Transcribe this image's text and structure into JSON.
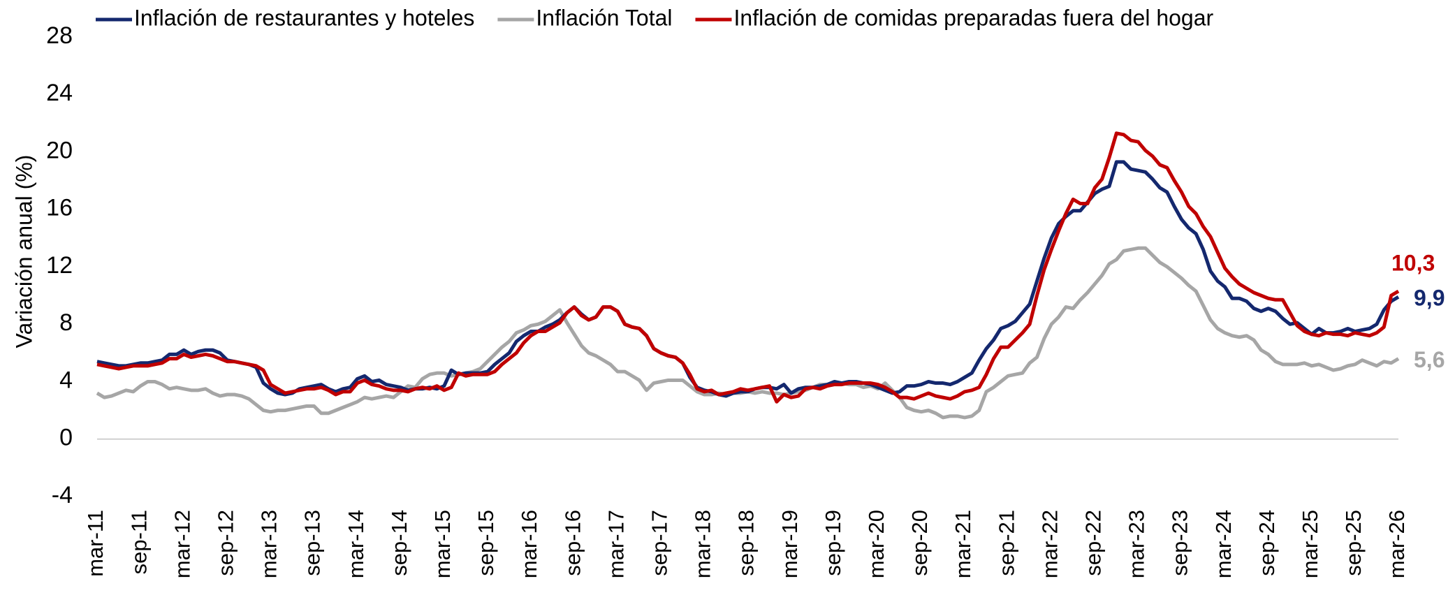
{
  "chart_data": {
    "type": "line",
    "y_label": "Variación anual (%)",
    "categories": [
      "mar-11",
      null,
      null,
      null,
      null,
      null,
      "sep-11",
      null,
      null,
      null,
      null,
      null,
      "mar-12",
      null,
      null,
      null,
      null,
      null,
      "sep-12",
      null,
      null,
      null,
      null,
      null,
      "mar-13",
      null,
      null,
      null,
      null,
      null,
      "sep-13",
      null,
      null,
      null,
      null,
      null,
      "mar-14",
      null,
      null,
      null,
      null,
      null,
      "sep-14",
      null,
      null,
      null,
      null,
      null,
      "mar-15",
      null,
      null,
      null,
      null,
      null,
      "sep-15",
      null,
      null,
      null,
      null,
      null,
      "mar-16",
      null,
      null,
      null,
      null,
      null,
      "sep-16",
      null,
      null,
      null,
      null,
      null,
      "mar-17",
      null,
      null,
      null,
      null,
      null,
      "sep-17",
      null,
      null,
      null,
      null,
      null,
      "mar-18",
      null,
      null,
      null,
      null,
      null,
      "sep-18",
      null,
      null,
      null,
      null,
      null,
      "mar-19",
      null,
      null,
      null,
      null,
      null,
      "sep-19",
      null,
      null,
      null,
      null,
      null,
      "mar-20",
      null,
      null,
      null,
      null,
      null,
      "sep-20",
      null,
      null,
      null,
      null,
      null,
      "mar-21",
      null,
      null,
      null,
      null,
      null,
      "sep-21",
      null,
      null,
      null,
      null,
      null,
      "mar-22",
      null,
      null,
      null,
      null,
      null,
      "sep-22",
      null,
      null,
      null,
      null,
      null,
      "mar-23",
      null,
      null,
      null,
      null,
      null,
      "sep-23",
      null,
      null,
      null,
      null,
      null,
      "mar-24",
      null,
      null,
      null,
      null,
      null,
      "sep-24",
      null,
      null,
      null,
      null,
      null,
      "mar-25",
      null,
      null,
      null,
      null,
      null,
      "sep-25",
      null,
      null,
      null,
      null,
      null,
      "mar-26"
    ],
    "series": [
      {
        "name": "Inflación de restaurantes y hoteles",
        "color": "#14286e",
        "values": [
          5.4,
          5.3,
          5.2,
          5.1,
          5.1,
          5.2,
          5.3,
          5.3,
          5.4,
          5.5,
          5.9,
          5.9,
          6.2,
          5.9,
          6.1,
          6.2,
          6.2,
          6.0,
          5.5,
          5.4,
          5.3,
          5.2,
          5.0,
          3.9,
          3.5,
          3.2,
          3.1,
          3.2,
          3.5,
          3.6,
          3.7,
          3.8,
          3.5,
          3.3,
          3.5,
          3.6,
          4.2,
          4.4,
          4.0,
          4.1,
          3.8,
          3.7,
          3.6,
          3.4,
          3.5,
          3.5,
          3.6,
          3.5,
          3.7,
          4.8,
          4.5,
          4.6,
          4.6,
          4.6,
          4.7,
          5.2,
          5.6,
          6.0,
          6.8,
          7.2,
          7.5,
          7.5,
          7.8,
          8.0,
          8.3,
          8.8,
          9.2,
          8.7,
          8.3,
          8.5,
          9.2,
          9.2,
          8.9,
          8.0,
          7.8,
          7.7,
          7.2,
          6.3,
          6.0,
          5.8,
          5.7,
          5.3,
          4.3,
          3.6,
          3.4,
          3.3,
          3.1,
          3.0,
          3.2,
          3.3,
          3.3,
          3.5,
          3.6,
          3.6,
          3.5,
          3.8,
          3.2,
          3.5,
          3.6,
          3.6,
          3.7,
          3.8,
          4.0,
          3.9,
          4.0,
          4.0,
          3.9,
          3.8,
          3.6,
          3.4,
          3.2,
          3.3,
          3.7,
          3.7,
          3.8,
          4.0,
          3.9,
          3.9,
          3.8,
          4.0,
          4.3,
          4.6,
          5.5,
          6.3,
          6.9,
          7.7,
          7.9,
          8.2,
          8.8,
          9.4,
          11.0,
          12.6,
          14.0,
          15.0,
          15.5,
          15.9,
          15.9,
          16.5,
          17.1,
          17.4,
          17.6,
          19.3,
          19.3,
          18.8,
          18.7,
          18.6,
          18.1,
          17.5,
          17.2,
          16.2,
          15.3,
          14.7,
          14.3,
          13.2,
          11.7,
          11.0,
          10.6,
          9.8,
          9.8,
          9.6,
          9.1,
          8.9,
          9.1,
          8.9,
          8.4,
          8.0,
          8.1,
          7.7,
          7.3,
          7.7,
          7.4,
          7.4,
          7.5,
          7.7,
          7.5,
          7.6,
          7.7,
          8.0,
          9.0,
          9.6,
          9.9
        ],
        "value_labels": {
          "180": "9,9"
        }
      },
      {
        "name": "Inflación Total",
        "color": "#a6a6a6",
        "values": [
          3.2,
          2.9,
          3.0,
          3.2,
          3.4,
          3.3,
          3.7,
          4.0,
          4.0,
          3.8,
          3.5,
          3.6,
          3.5,
          3.4,
          3.4,
          3.5,
          3.2,
          3.0,
          3.1,
          3.1,
          3.0,
          2.8,
          2.4,
          2.0,
          1.9,
          2.0,
          2.0,
          2.1,
          2.2,
          2.3,
          2.3,
          1.8,
          1.8,
          2.0,
          2.2,
          2.4,
          2.6,
          2.9,
          2.8,
          2.9,
          3.0,
          2.9,
          3.3,
          3.7,
          3.6,
          4.2,
          4.5,
          4.6,
          4.6,
          4.4,
          4.5,
          4.6,
          4.7,
          4.9,
          5.4,
          5.9,
          6.4,
          6.8,
          7.4,
          7.6,
          7.9,
          8.0,
          8.2,
          8.6,
          9.0,
          8.1,
          7.3,
          6.5,
          6.0,
          5.8,
          5.5,
          5.2,
          4.7,
          4.7,
          4.4,
          4.1,
          3.4,
          3.9,
          4.0,
          4.1,
          4.1,
          4.1,
          3.7,
          3.3,
          3.1,
          3.1,
          3.2,
          3.1,
          3.2,
          3.2,
          3.3,
          3.2,
          3.3,
          3.2,
          3.2,
          3.1,
          3.2,
          3.3,
          3.4,
          3.6,
          3.8,
          3.8,
          3.9,
          3.9,
          3.8,
          3.8,
          3.6,
          3.7,
          3.5,
          3.9,
          3.4,
          2.9,
          2.2,
          2.0,
          1.9,
          2.0,
          1.8,
          1.5,
          1.6,
          1.6,
          1.5,
          1.6,
          2.0,
          3.3,
          3.6,
          4.0,
          4.4,
          4.5,
          4.6,
          5.3,
          5.7,
          7.0,
          8.0,
          8.5,
          9.2,
          9.1,
          9.7,
          10.2,
          10.8,
          11.4,
          12.2,
          12.5,
          13.1,
          13.2,
          13.3,
          13.3,
          12.8,
          12.3,
          12.0,
          11.6,
          11.2,
          10.7,
          10.3,
          9.3,
          8.3,
          7.7,
          7.4,
          7.2,
          7.1,
          7.2,
          6.9,
          6.2,
          5.9,
          5.4,
          5.2,
          5.2,
          5.2,
          5.3,
          5.1,
          5.2,
          5.0,
          4.8,
          4.9,
          5.1,
          5.2,
          5.5,
          5.3,
          5.1,
          5.4,
          5.3,
          5.6
        ],
        "value_labels": {
          "180": "5,6"
        }
      },
      {
        "name": "Inflación de comidas preparadas fuera del hogar",
        "color": "#c00000",
        "values": [
          5.2,
          5.1,
          5.0,
          4.9,
          5.0,
          5.1,
          5.1,
          5.1,
          5.2,
          5.3,
          5.6,
          5.6,
          5.9,
          5.7,
          5.8,
          5.9,
          5.8,
          5.6,
          5.4,
          5.4,
          5.3,
          5.2,
          5.1,
          4.8,
          3.8,
          3.5,
          3.2,
          3.3,
          3.4,
          3.5,
          3.5,
          3.6,
          3.4,
          3.1,
          3.3,
          3.3,
          3.9,
          4.1,
          3.8,
          3.7,
          3.5,
          3.4,
          3.4,
          3.3,
          3.5,
          3.6,
          3.5,
          3.7,
          3.4,
          3.6,
          4.6,
          4.4,
          4.5,
          4.5,
          4.5,
          4.7,
          5.2,
          5.6,
          6.0,
          6.7,
          7.2,
          7.5,
          7.5,
          7.8,
          8.1,
          8.8,
          9.2,
          8.6,
          8.3,
          8.5,
          9.2,
          9.2,
          8.9,
          8.0,
          7.8,
          7.7,
          7.2,
          6.3,
          6.0,
          5.8,
          5.7,
          5.3,
          4.5,
          3.5,
          3.3,
          3.4,
          3.1,
          3.2,
          3.3,
          3.5,
          3.4,
          3.5,
          3.6,
          3.7,
          2.6,
          3.1,
          2.9,
          3.0,
          3.5,
          3.6,
          3.5,
          3.7,
          3.8,
          3.8,
          3.9,
          3.9,
          3.9,
          3.9,
          3.8,
          3.6,
          3.3,
          2.9,
          2.9,
          2.8,
          3.0,
          3.2,
          3.0,
          2.9,
          2.8,
          3.0,
          3.3,
          3.4,
          3.6,
          4.5,
          5.6,
          6.4,
          6.4,
          6.9,
          7.4,
          8.0,
          10.0,
          11.8,
          13.2,
          14.5,
          15.7,
          16.7,
          16.4,
          16.4,
          17.5,
          18.1,
          19.6,
          21.3,
          21.2,
          20.8,
          20.7,
          20.1,
          19.7,
          19.1,
          18.9,
          18.0,
          17.2,
          16.2,
          15.7,
          14.8,
          14.1,
          13.0,
          11.9,
          11.3,
          10.8,
          10.5,
          10.2,
          10.0,
          9.8,
          9.7,
          9.7,
          8.8,
          7.9,
          7.5,
          7.3,
          7.2,
          7.4,
          7.3,
          7.3,
          7.2,
          7.4,
          7.3,
          7.2,
          7.4,
          7.8,
          10.0,
          10.3
        ],
        "value_labels": {
          "180": "10,3"
        }
      }
    ],
    "ylim": [
      -4,
      28
    ],
    "yticks": [
      -4,
      0,
      4,
      8,
      12,
      16,
      20,
      24,
      28
    ],
    "legend": "top"
  }
}
